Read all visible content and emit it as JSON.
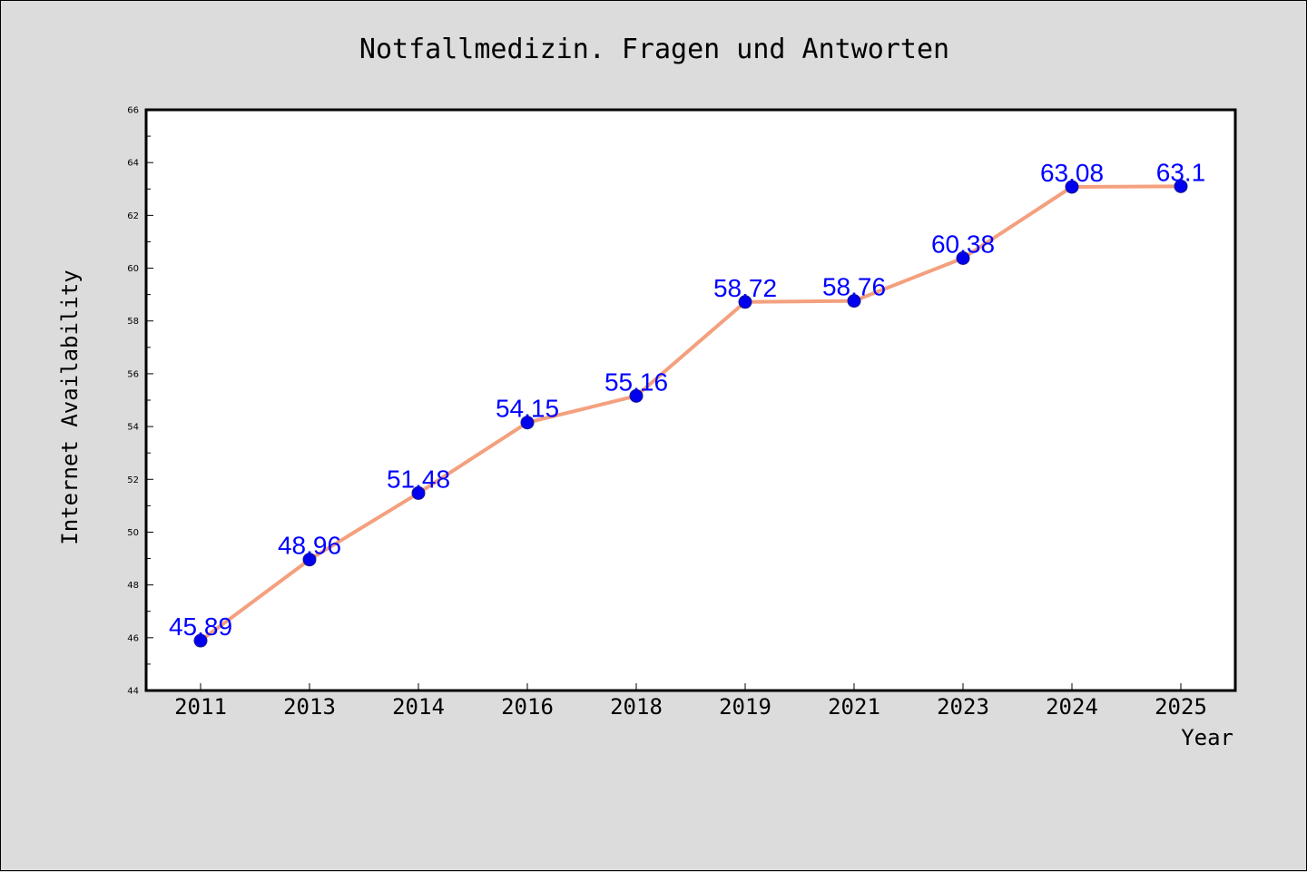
{
  "chart_data": {
    "type": "line",
    "title": "Notfallmedizin. Fragen und Antworten",
    "xlabel": "Year",
    "ylabel": "Internet Availability",
    "categories": [
      "2011",
      "2013",
      "2014",
      "2016",
      "2018",
      "2019",
      "2021",
      "2023",
      "2024",
      "2025"
    ],
    "series": [
      {
        "values": [
          45.89,
          48.96,
          51.48,
          54.15,
          55.16,
          58.72,
          58.76,
          60.38,
          63.08,
          63.1
        ],
        "labels": [
          "45.89",
          "48.96",
          "51.48",
          "54.15",
          "55.16",
          "58.72",
          "58.76",
          "60.38",
          "63.08",
          "63.1"
        ]
      }
    ],
    "ylim": [
      44,
      66
    ],
    "yticks": [
      "44",
      "46",
      "48",
      "50",
      "52",
      "54",
      "56",
      "58",
      "60",
      "62",
      "64",
      "66"
    ],
    "line_color": "#f4a07e",
    "marker_color": "#0000ee",
    "label_color": "#0000ff",
    "plot_background": "#ffffff",
    "page_background": "#dcdcdc",
    "grid": false,
    "legend": "none"
  }
}
